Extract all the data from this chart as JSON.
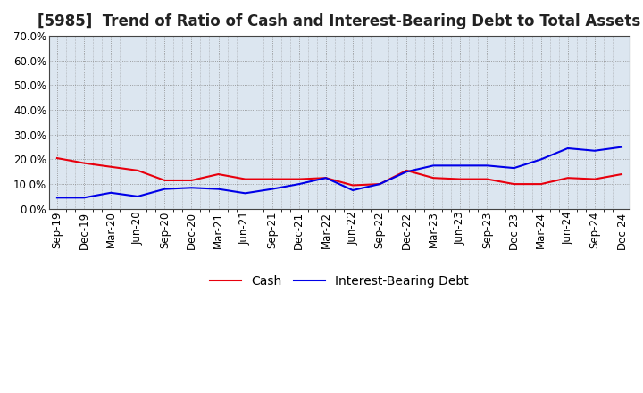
{
  "title": "[5985]  Trend of Ratio of Cash and Interest-Bearing Debt to Total Assets",
  "x_labels": [
    "Sep-19",
    "Dec-19",
    "Mar-20",
    "Jun-20",
    "Sep-20",
    "Dec-20",
    "Mar-21",
    "Jun-21",
    "Sep-21",
    "Dec-21",
    "Mar-22",
    "Jun-22",
    "Sep-22",
    "Dec-22",
    "Mar-23",
    "Jun-23",
    "Sep-23",
    "Dec-23",
    "Mar-24",
    "Jun-24",
    "Sep-24",
    "Dec-24"
  ],
  "cash": [
    0.205,
    0.185,
    0.17,
    0.155,
    0.115,
    0.115,
    0.14,
    0.12,
    0.12,
    0.12,
    0.125,
    0.095,
    0.1,
    0.155,
    0.125,
    0.12,
    0.12,
    0.1,
    0.1,
    0.125,
    0.12,
    0.14
  ],
  "interest_bearing_debt": [
    0.045,
    0.045,
    0.065,
    0.05,
    0.08,
    0.085,
    0.08,
    0.063,
    0.08,
    0.1,
    0.125,
    0.075,
    0.1,
    0.15,
    0.175,
    0.175,
    0.175,
    0.165,
    0.2,
    0.245,
    0.235,
    0.25
  ],
  "cash_color": "#e8000d",
  "debt_color": "#0000e8",
  "ylim": [
    0.0,
    0.7
  ],
  "yticks": [
    0.0,
    0.1,
    0.2,
    0.3,
    0.4,
    0.5,
    0.6,
    0.7
  ],
  "background_color": "#ffffff",
  "axes_bg_color": "#dce6f0",
  "grid_color": "#888888",
  "legend_cash": "Cash",
  "legend_debt": "Interest-Bearing Debt",
  "title_fontsize": 12,
  "tick_fontsize": 8.5,
  "legend_fontsize": 10
}
